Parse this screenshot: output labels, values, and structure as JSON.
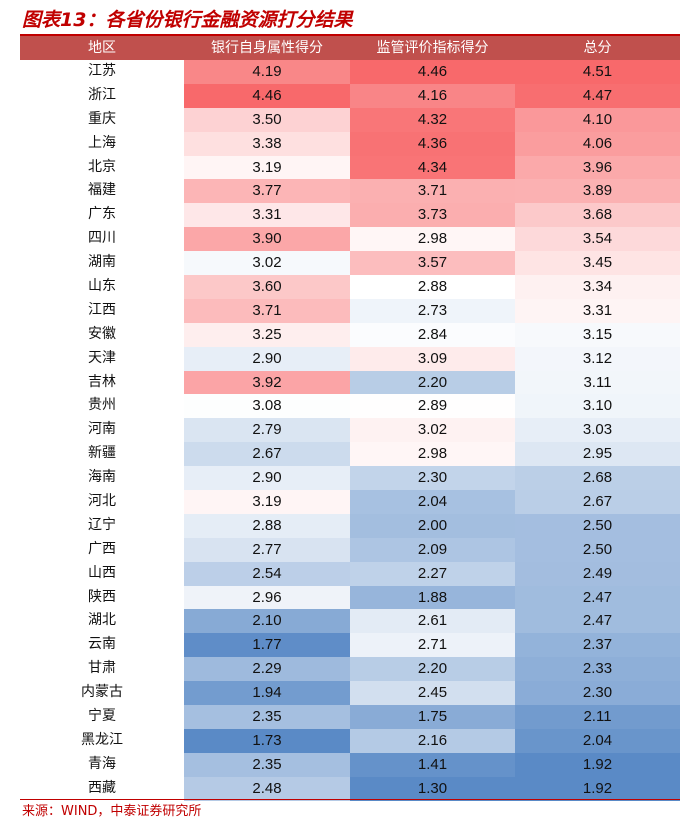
{
  "title": "图表13：各省份银行金融资源打分结果",
  "source": "来源：WIND，中泰证券研究所",
  "colors": {
    "accent": "#c00000",
    "header_bg": "#c0504d",
    "high": "#f8696b",
    "mid": "#ffffff",
    "low": "#5a8ac6"
  },
  "chart_data": {
    "type": "table",
    "columns": [
      "地区",
      "银行自身属性得分",
      "监管评价指标得分",
      "总分"
    ],
    "rows": [
      {
        "region": "江苏",
        "self_score": "4.19",
        "regulatory_score": "4.46",
        "total": "4.51"
      },
      {
        "region": "浙江",
        "self_score": "4.46",
        "regulatory_score": "4.16",
        "total": "4.47"
      },
      {
        "region": "重庆",
        "self_score": "3.50",
        "regulatory_score": "4.32",
        "total": "4.10"
      },
      {
        "region": "上海",
        "self_score": "3.38",
        "regulatory_score": "4.36",
        "total": "4.06"
      },
      {
        "region": "北京",
        "self_score": "3.19",
        "regulatory_score": "4.34",
        "total": "3.96"
      },
      {
        "region": "福建",
        "self_score": "3.77",
        "regulatory_score": "3.71",
        "total": "3.89"
      },
      {
        "region": "广东",
        "self_score": "3.31",
        "regulatory_score": "3.73",
        "total": "3.68"
      },
      {
        "region": "四川",
        "self_score": "3.90",
        "regulatory_score": "2.98",
        "total": "3.54"
      },
      {
        "region": "湖南",
        "self_score": "3.02",
        "regulatory_score": "3.57",
        "total": "3.45"
      },
      {
        "region": "山东",
        "self_score": "3.60",
        "regulatory_score": "2.88",
        "total": "3.34"
      },
      {
        "region": "江西",
        "self_score": "3.71",
        "regulatory_score": "2.73",
        "total": "3.31"
      },
      {
        "region": "安徽",
        "self_score": "3.25",
        "regulatory_score": "2.84",
        "total": "3.15"
      },
      {
        "region": "天津",
        "self_score": "2.90",
        "regulatory_score": "3.09",
        "total": "3.12"
      },
      {
        "region": "吉林",
        "self_score": "3.92",
        "regulatory_score": "2.20",
        "total": "3.11"
      },
      {
        "region": "贵州",
        "self_score": "3.08",
        "regulatory_score": "2.89",
        "total": "3.10"
      },
      {
        "region": "河南",
        "self_score": "2.79",
        "regulatory_score": "3.02",
        "total": "3.03"
      },
      {
        "region": "新疆",
        "self_score": "2.67",
        "regulatory_score": "2.98",
        "total": "2.95"
      },
      {
        "region": "海南",
        "self_score": "2.90",
        "regulatory_score": "2.30",
        "total": "2.68"
      },
      {
        "region": "河北",
        "self_score": "3.19",
        "regulatory_score": "2.04",
        "total": "2.67"
      },
      {
        "region": "辽宁",
        "self_score": "2.88",
        "regulatory_score": "2.00",
        "total": "2.50"
      },
      {
        "region": "广西",
        "self_score": "2.77",
        "regulatory_score": "2.09",
        "total": "2.50"
      },
      {
        "region": "山西",
        "self_score": "2.54",
        "regulatory_score": "2.27",
        "total": "2.49"
      },
      {
        "region": "陕西",
        "self_score": "2.96",
        "regulatory_score": "1.88",
        "total": "2.47"
      },
      {
        "region": "湖北",
        "self_score": "2.10",
        "regulatory_score": "2.61",
        "total": "2.47"
      },
      {
        "region": "云南",
        "self_score": "1.77",
        "regulatory_score": "2.71",
        "total": "2.37"
      },
      {
        "region": "甘肃",
        "self_score": "2.29",
        "regulatory_score": "2.20",
        "total": "2.33"
      },
      {
        "region": "内蒙古",
        "self_score": "1.94",
        "regulatory_score": "2.45",
        "total": "2.30"
      },
      {
        "region": "宁夏",
        "self_score": "2.35",
        "regulatory_score": "1.75",
        "total": "2.11"
      },
      {
        "region": "黑龙江",
        "self_score": "1.73",
        "regulatory_score": "2.16",
        "total": "2.04"
      },
      {
        "region": "青海",
        "self_score": "2.35",
        "regulatory_score": "1.41",
        "total": "1.92"
      },
      {
        "region": "西藏",
        "self_score": "2.48",
        "regulatory_score": "1.30",
        "total": "1.92"
      }
    ]
  }
}
